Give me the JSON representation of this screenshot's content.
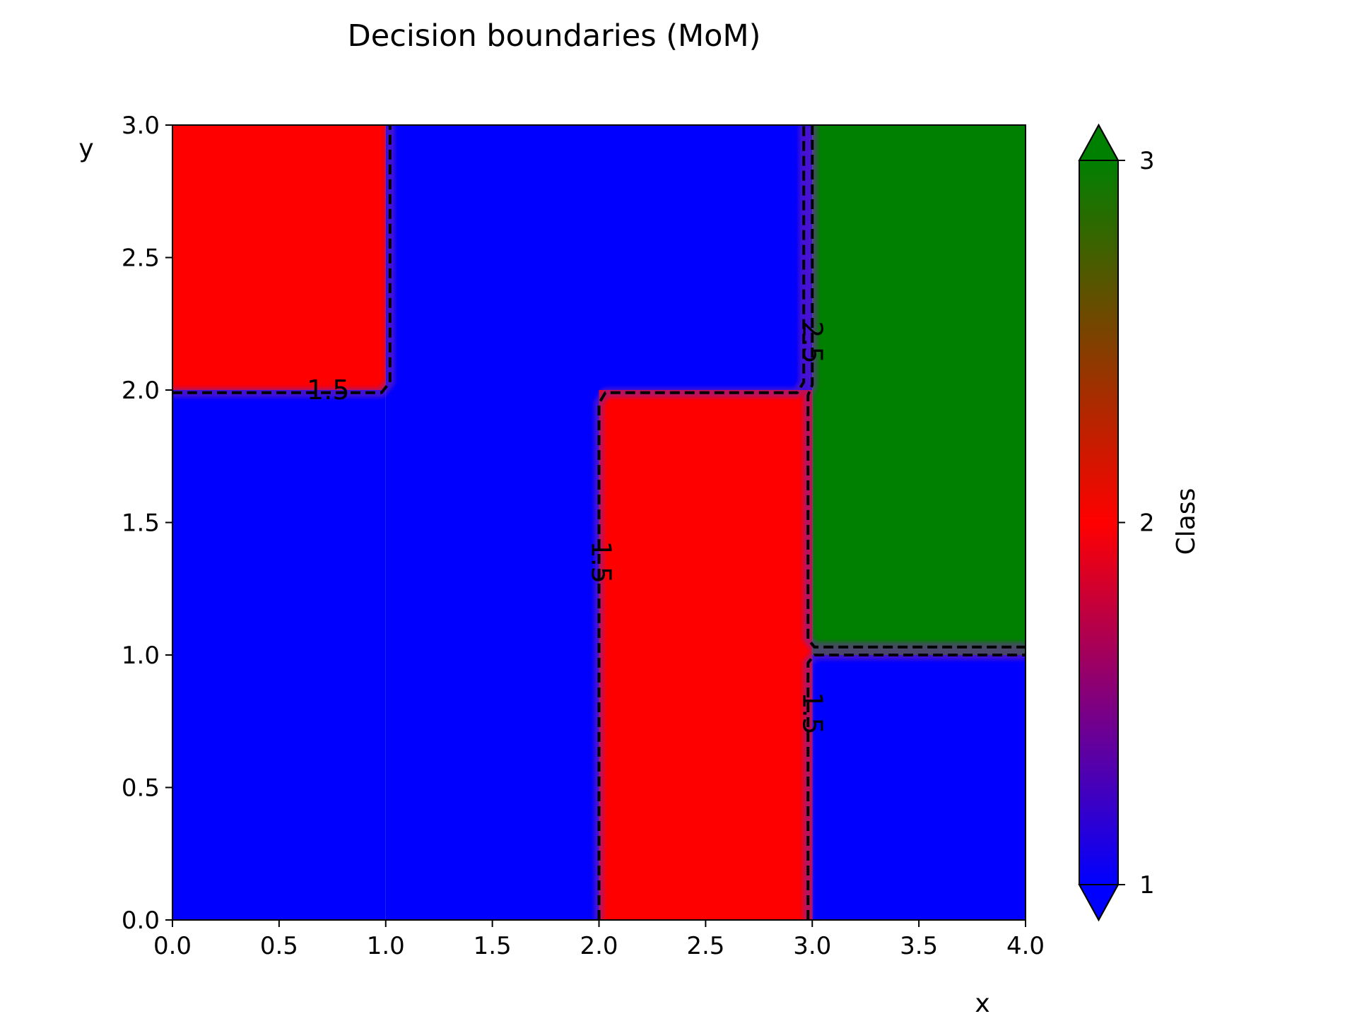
{
  "chart_data": {
    "type": "heatmap",
    "title": "Decision boundaries (MoM)",
    "xlabel": "x",
    "ylabel": "y",
    "xlim": [
      0.0,
      4.0
    ],
    "ylim": [
      0.0,
      3.0
    ],
    "x_ticks": [
      "0.0",
      "0.5",
      "1.0",
      "1.5",
      "2.0",
      "2.5",
      "3.0",
      "3.5",
      "4.0"
    ],
    "y_ticks": [
      "0.0",
      "0.5",
      "1.0",
      "1.5",
      "2.0",
      "2.5",
      "3.0"
    ],
    "grid": false,
    "regions": [
      {
        "class": 2,
        "x0": 0.0,
        "x1": 1.0,
        "y0": 2.0,
        "y1": 3.0
      },
      {
        "class": 1,
        "x0": 0.0,
        "x1": 1.0,
        "y0": 0.0,
        "y1": 2.0
      },
      {
        "class": 1,
        "x0": 1.0,
        "x1": 2.0,
        "y0": 0.0,
        "y1": 3.0
      },
      {
        "class": 1,
        "x0": 2.0,
        "x1": 3.0,
        "y0": 2.0,
        "y1": 3.0
      },
      {
        "class": 2,
        "x0": 2.0,
        "x1": 3.0,
        "y0": 0.0,
        "y1": 2.0
      },
      {
        "class": 3,
        "x0": 3.0,
        "x1": 4.0,
        "y0": 1.0,
        "y1": 3.0
      },
      {
        "class": 1,
        "x0": 3.0,
        "x1": 4.0,
        "y0": 0.0,
        "y1": 1.0
      }
    ],
    "contours": [
      {
        "level": 1.5,
        "points": [
          [
            0.0,
            1.99
          ],
          [
            0.98,
            1.99
          ],
          [
            1.02,
            2.03
          ],
          [
            1.02,
            3.0
          ]
        ]
      },
      {
        "level": 1.5,
        "points": [
          [
            2.0,
            0.0
          ],
          [
            2.0,
            1.95
          ],
          [
            2.03,
            1.99
          ],
          [
            2.93,
            1.99
          ],
          [
            2.96,
            2.03
          ],
          [
            2.96,
            3.0
          ]
        ]
      },
      {
        "level": 1.5,
        "points": [
          [
            2.98,
            0.0
          ],
          [
            2.98,
            0.97
          ],
          [
            3.01,
            1.0
          ],
          [
            4.0,
            1.0
          ]
        ]
      },
      {
        "level": 2.5,
        "points": [
          [
            3.0,
            3.0
          ],
          [
            3.0,
            2.02
          ],
          [
            2.98,
            1.98
          ],
          [
            2.98,
            1.06
          ],
          [
            3.01,
            1.03
          ],
          [
            4.0,
            1.03
          ]
        ]
      }
    ],
    "contour_labels": [
      {
        "text": "1.5",
        "x": 0.73,
        "y": 2.0,
        "rotation": 0
      },
      {
        "text": "1.5",
        "x": 2.01,
        "y": 1.35,
        "rotation": 90
      },
      {
        "text": "2.5",
        "x": 3.0,
        "y": 2.18,
        "rotation": 90
      },
      {
        "text": "1.5",
        "x": 3.0,
        "y": 0.78,
        "rotation": 90
      }
    ],
    "colorbar": {
      "label": "Class",
      "ticks": [
        "1",
        "2",
        "3"
      ],
      "range": [
        1,
        3
      ],
      "colors": [
        "#0000ff",
        "#ff0000",
        "#008000"
      ],
      "extend": "both"
    }
  }
}
